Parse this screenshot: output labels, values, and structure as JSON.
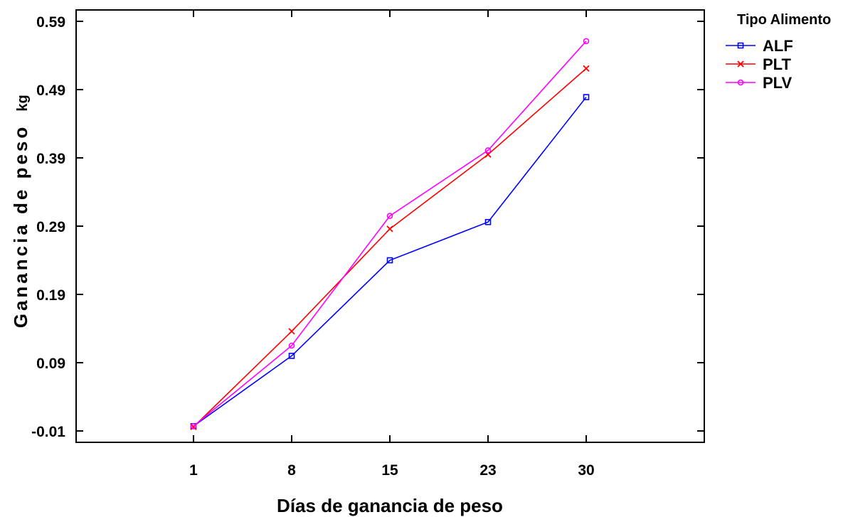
{
  "chart_data": {
    "type": "line",
    "xlabel": "Días de ganancia de peso",
    "ylabel": "Ganancia de peso",
    "ylabel_unit": "kg",
    "categories": [
      "1",
      "8",
      "15",
      "23",
      "30"
    ],
    "y_ticks": [
      "-0.01",
      "0.09",
      "0.19",
      "0.29",
      "0.39",
      "0.49",
      "0.59"
    ],
    "ylim": [
      -0.01,
      0.59
    ],
    "legend_title": "Tipo Alimento",
    "legend_position": "top-right, outside plot",
    "grid": false,
    "series": [
      {
        "name": "ALF",
        "color": "#0000ff",
        "marker": "square",
        "values": [
          -0.003,
          0.1,
          0.24,
          0.296,
          0.479
        ]
      },
      {
        "name": "PLT",
        "color": "#ff0000",
        "marker": "x",
        "values": [
          -0.004,
          0.136,
          0.286,
          0.395,
          0.521
        ]
      },
      {
        "name": "PLV",
        "color": "#ff00ff",
        "marker": "circle",
        "values": [
          -0.003,
          0.115,
          0.305,
          0.401,
          0.561
        ]
      }
    ]
  }
}
